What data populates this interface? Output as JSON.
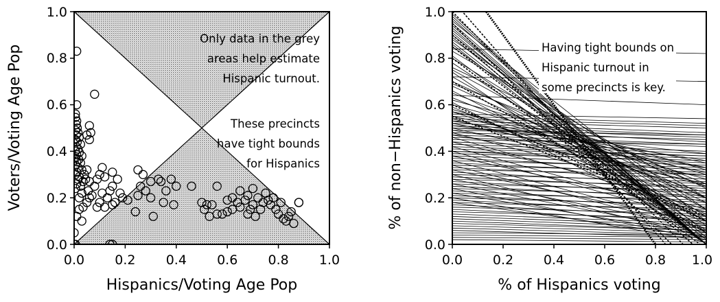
{
  "chart_data": [
    {
      "type": "scatter",
      "title": "",
      "xlabel": "Hispanics/Voting Age Pop",
      "ylabel": "Voters/Voting Age Pop",
      "xlim": [
        0.0,
        1.0
      ],
      "ylim": [
        0.0,
        1.0
      ],
      "xticks": [
        "0.0",
        "0.2",
        "0.4",
        "0.6",
        "0.8",
        "1.0"
      ],
      "yticks": [
        "0.0",
        "0.2",
        "0.4",
        "0.6",
        "0.8",
        "1.0"
      ],
      "grid": false,
      "shaded_regions": "two grey triangles: lower-right (y < x and y < 1 - x) and upper-right (y > x and y > 1 - x)",
      "annotations": [
        [
          "Only data in the grey",
          "areas help estimate",
          "Hispanic turnout."
        ],
        [
          "These precincts",
          "have tight bounds",
          "for Hispanics"
        ]
      ],
      "points": [
        [
          0.01,
          0.83
        ],
        [
          0.08,
          0.645
        ],
        [
          0.01,
          0.6
        ],
        [
          0.005,
          0.56
        ],
        [
          0.005,
          0.545
        ],
        [
          0.01,
          0.53
        ],
        [
          0.008,
          0.515
        ],
        [
          0.012,
          0.5
        ],
        [
          0.005,
          0.49
        ],
        [
          0.015,
          0.48
        ],
        [
          0.008,
          0.47
        ],
        [
          0.02,
          0.46
        ],
        [
          0.005,
          0.45
        ],
        [
          0.012,
          0.44
        ],
        [
          0.025,
          0.43
        ],
        [
          0.008,
          0.42
        ],
        [
          0.015,
          0.41
        ],
        [
          0.005,
          0.4
        ],
        [
          0.02,
          0.395
        ],
        [
          0.01,
          0.385
        ],
        [
          0.03,
          0.38
        ],
        [
          0.005,
          0.37
        ],
        [
          0.018,
          0.365
        ],
        [
          0.01,
          0.355
        ],
        [
          0.025,
          0.35
        ],
        [
          0.005,
          0.34
        ],
        [
          0.015,
          0.33
        ],
        [
          0.03,
          0.32
        ],
        [
          0.01,
          0.31
        ],
        [
          0.005,
          0.3
        ],
        [
          0.02,
          0.29
        ],
        [
          0.015,
          0.28
        ],
        [
          0.035,
          0.27
        ],
        [
          0.01,
          0.26
        ],
        [
          0.025,
          0.25
        ],
        [
          0.005,
          0.24
        ],
        [
          0.04,
          0.3
        ],
        [
          0.05,
          0.32
        ],
        [
          0.045,
          0.28
        ],
        [
          0.06,
          0.27
        ],
        [
          0.055,
          0.23
        ],
        [
          0.03,
          0.22
        ],
        [
          0.02,
          0.2
        ],
        [
          0.06,
          0.2
        ],
        [
          0.05,
          0.18
        ],
        [
          0.035,
          0.16
        ],
        [
          0.02,
          0.15
        ],
        [
          0.01,
          0.12
        ],
        [
          0.03,
          0.1
        ],
        [
          0.0,
          0.05
        ],
        [
          0.0,
          0.0
        ],
        [
          0.005,
          0.0
        ],
        [
          0.06,
          0.51
        ],
        [
          0.065,
          0.48
        ],
        [
          0.05,
          0.47
        ],
        [
          0.06,
          0.45
        ],
        [
          0.11,
          0.33
        ],
        [
          0.1,
          0.3
        ],
        [
          0.12,
          0.29
        ],
        [
          0.09,
          0.28
        ],
        [
          0.08,
          0.25
        ],
        [
          0.07,
          0.21
        ],
        [
          0.11,
          0.22
        ],
        [
          0.13,
          0.2
        ],
        [
          0.1,
          0.18
        ],
        [
          0.12,
          0.16
        ],
        [
          0.09,
          0.16
        ],
        [
          0.15,
          0.31
        ],
        [
          0.17,
          0.28
        ],
        [
          0.15,
          0.25
        ],
        [
          0.14,
          0.23
        ],
        [
          0.18,
          0.22
        ],
        [
          0.19,
          0.2
        ],
        [
          0.16,
          0.18
        ],
        [
          0.15,
          0.17
        ],
        [
          0.21,
          0.19
        ],
        [
          0.14,
          0.0
        ],
        [
          0.15,
          0.0
        ],
        [
          0.25,
          0.32
        ],
        [
          0.27,
          0.3
        ],
        [
          0.26,
          0.25
        ],
        [
          0.3,
          0.27
        ],
        [
          0.28,
          0.23
        ],
        [
          0.25,
          0.21
        ],
        [
          0.3,
          0.2
        ],
        [
          0.34,
          0.27
        ],
        [
          0.33,
          0.28
        ],
        [
          0.36,
          0.23
        ],
        [
          0.38,
          0.28
        ],
        [
          0.4,
          0.25
        ],
        [
          0.35,
          0.18
        ],
        [
          0.39,
          0.17
        ],
        [
          0.31,
          0.12
        ],
        [
          0.24,
          0.14
        ],
        [
          0.46,
          0.25
        ],
        [
          0.5,
          0.18
        ],
        [
          0.52,
          0.17
        ],
        [
          0.51,
          0.15
        ],
        [
          0.54,
          0.17
        ],
        [
          0.56,
          0.13
        ],
        [
          0.58,
          0.13
        ],
        [
          0.53,
          0.12
        ],
        [
          0.56,
          0.25
        ],
        [
          0.6,
          0.19
        ],
        [
          0.62,
          0.2
        ],
        [
          0.64,
          0.18
        ],
        [
          0.62,
          0.15
        ],
        [
          0.65,
          0.16
        ],
        [
          0.67,
          0.19
        ],
        [
          0.68,
          0.21
        ],
        [
          0.69,
          0.15
        ],
        [
          0.7,
          0.17
        ],
        [
          0.72,
          0.2
        ],
        [
          0.71,
          0.12
        ],
        [
          0.73,
          0.15
        ],
        [
          0.74,
          0.18
        ],
        [
          0.75,
          0.22
        ],
        [
          0.76,
          0.19
        ],
        [
          0.77,
          0.17
        ],
        [
          0.78,
          0.2
        ],
        [
          0.79,
          0.15
        ],
        [
          0.8,
          0.13
        ],
        [
          0.82,
          0.11
        ],
        [
          0.83,
          0.1
        ],
        [
          0.81,
          0.18
        ],
        [
          0.84,
          0.12
        ],
        [
          0.85,
          0.14
        ],
        [
          0.86,
          0.09
        ],
        [
          0.7,
          0.24
        ],
        [
          0.65,
          0.23
        ],
        [
          0.6,
          0.14
        ],
        [
          0.68,
          0.13
        ],
        [
          0.88,
          0.18
        ],
        [
          0.88,
          0.18
        ]
      ]
    },
    {
      "type": "line",
      "title": "",
      "xlabel": "% of Hispanics voting",
      "ylabel": "% of non−Hispanics voting",
      "xlim": [
        0.0,
        1.0
      ],
      "ylim": [
        0.0,
        1.0
      ],
      "xticks": [
        "0.0",
        "0.2",
        "0.4",
        "0.6",
        "0.8",
        "1.0"
      ],
      "yticks": [
        "0.0",
        "0.2",
        "0.4",
        "0.6",
        "0.8",
        "1.0"
      ],
      "grid": false,
      "annotations": [
        [
          "Having tight bounds on",
          "Hispanic turnout in",
          "some precincts is key."
        ]
      ],
      "lines": [
        [
          0.84,
          0.82
        ],
        [
          0.72,
          0.7
        ],
        [
          0.64,
          0.6
        ],
        [
          0.53,
          0.5
        ],
        [
          0.52,
          0.48
        ],
        [
          0.51,
          0.47
        ],
        [
          0.5,
          0.46
        ],
        [
          0.5,
          0.44
        ],
        [
          0.49,
          0.47
        ],
        [
          0.48,
          0.45
        ],
        [
          0.47,
          0.43
        ],
        [
          0.46,
          0.42
        ],
        [
          0.45,
          0.43
        ],
        [
          0.44,
          0.4
        ],
        [
          0.43,
          0.39
        ],
        [
          0.42,
          0.38
        ],
        [
          0.41,
          0.38
        ],
        [
          0.4,
          0.37
        ],
        [
          0.4,
          0.35
        ],
        [
          0.39,
          0.36
        ],
        [
          0.38,
          0.34
        ],
        [
          0.37,
          0.32
        ],
        [
          0.36,
          0.33
        ],
        [
          0.35,
          0.3
        ],
        [
          0.34,
          0.31
        ],
        [
          0.33,
          0.28
        ],
        [
          0.32,
          0.3
        ],
        [
          0.31,
          0.26
        ],
        [
          0.3,
          0.27
        ],
        [
          0.29,
          0.24
        ],
        [
          0.28,
          0.25
        ],
        [
          0.27,
          0.22
        ],
        [
          0.26,
          0.23
        ],
        [
          0.25,
          0.2
        ],
        [
          0.24,
          0.21
        ],
        [
          0.23,
          0.18
        ],
        [
          0.22,
          0.19
        ],
        [
          0.21,
          0.16
        ],
        [
          0.2,
          0.17
        ],
        [
          0.19,
          0.14
        ],
        [
          0.18,
          0.15
        ],
        [
          0.17,
          0.12
        ],
        [
          0.16,
          0.13
        ],
        [
          0.15,
          0.1
        ],
        [
          0.14,
          0.11
        ],
        [
          0.13,
          0.09
        ],
        [
          0.12,
          0.08
        ],
        [
          0.11,
          0.07
        ],
        [
          0.1,
          0.06
        ],
        [
          0.09,
          0.06
        ],
        [
          0.08,
          0.05
        ],
        [
          0.07,
          0.04
        ],
        [
          0.06,
          0.03
        ],
        [
          0.05,
          0.04
        ],
        [
          0.04,
          0.03
        ],
        [
          0.03,
          0.02
        ],
        [
          0.02,
          0.01
        ],
        [
          0.56,
          0.54
        ],
        [
          0.55,
          0.52
        ],
        [
          0.54,
          0.51
        ],
        [
          0.6,
          0.3
        ],
        [
          0.65,
          0.25
        ],
        [
          0.62,
          0.32
        ],
        [
          0.58,
          0.28
        ],
        [
          0.7,
          0.2
        ],
        [
          0.68,
          0.18
        ],
        [
          0.75,
          0.15
        ],
        [
          0.72,
          0.1
        ],
        [
          0.8,
          0.12
        ],
        [
          0.85,
          0.08
        ],
        [
          0.9,
          0.05
        ],
        [
          0.78,
          0.06
        ],
        [
          0.95,
          0.0
        ],
        [
          0.92,
          0.03
        ],
        [
          0.87,
          0.02
        ],
        [
          0.96,
          0.1
        ],
        [
          0.88,
          0.15
        ],
        [
          0.83,
          0.2
        ],
        [
          0.76,
          0.24
        ],
        [
          0.69,
          0.26
        ],
        [
          0.63,
          0.2
        ],
        [
          0.57,
          0.22
        ],
        [
          0.54,
          0.25
        ],
        [
          0.5,
          0.26
        ],
        [
          0.48,
          0.2
        ],
        [
          0.46,
          0.15
        ],
        [
          0.44,
          0.18
        ],
        [
          0.42,
          0.12
        ],
        [
          0.4,
          0.1
        ],
        [
          0.38,
          0.14
        ],
        [
          0.36,
          0.08
        ],
        [
          0.34,
          0.06
        ],
        [
          0.32,
          0.09
        ],
        [
          0.3,
          0.03
        ],
        [
          0.28,
          0.07
        ],
        [
          0.26,
          0.05
        ],
        [
          0.24,
          0.02
        ],
        [
          0.22,
          0.04
        ],
        [
          0.2,
          0.01
        ],
        [
          0.18,
          0.03
        ],
        [
          0.66,
          0.1
        ],
        [
          0.61,
          0.05
        ],
        [
          0.59,
          0.13
        ],
        [
          0.57,
          0.35
        ],
        [
          0.55,
          0.33
        ],
        [
          0.53,
          0.36
        ],
        [
          0.52,
          0.31
        ],
        [
          0.51,
          0.39
        ],
        [
          0.49,
          0.33
        ],
        [
          0.47,
          0.29
        ],
        [
          0.74,
          0.0
        ],
        [
          0.81,
          0.0
        ],
        [
          0.86,
          0.0
        ],
        [
          0.93,
          0.0
        ],
        [
          0.99,
          0.0
        ],
        [
          0.97,
          0.0
        ],
        [
          0.94,
          0.0
        ],
        [
          0.89,
          0.0
        ],
        [
          0.91,
          0.0
        ],
        [
          0.98,
          0.0
        ]
      ],
      "highlight_lines": [
        [
          1.0,
          -0.1
        ],
        [
          1.2,
          -0.3
        ],
        [
          0.95,
          -0.15
        ],
        [
          0.9,
          -0.05
        ],
        [
          1.05,
          -0.2
        ],
        [
          0.7,
          0.05
        ],
        [
          0.6,
          0.1
        ],
        [
          0.8,
          -0.02
        ],
        [
          0.55,
          0.12
        ],
        [
          0.85,
          0.0
        ]
      ]
    }
  ]
}
